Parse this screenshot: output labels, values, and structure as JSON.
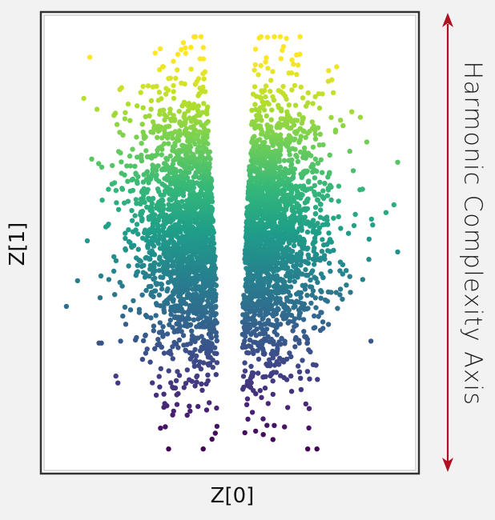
{
  "chart_data": {
    "type": "scatter",
    "title": "",
    "xlabel": "Z[0]",
    "ylabel": "Z[1]",
    "grid": false,
    "legend": "none",
    "colormap": "viridis",
    "color_encodes": "Z[1]",
    "xlim": [
      -2.6,
      2.6
    ],
    "ylim": [
      -3.2,
      3.2
    ],
    "point_count": 4000,
    "distribution": "two vertical lobes mirrored about Z[0]=0 with an empty gap between them; point density highest near the center",
    "annotation": "Harmonic Complexity Axis",
    "annotation_arrow": "double-headed vertical arrow"
  },
  "colors": {
    "background": "#f2f2f2",
    "plot_background": "#ffffff",
    "frame": "#333333",
    "inner_frame": "#bbbbbb",
    "arrow": "#b01020",
    "colormap_stops": [
      "#440154",
      "#482878",
      "#3e4a89",
      "#31688e",
      "#26828e",
      "#1f9e89",
      "#35b779",
      "#6ece58",
      "#b5de2b",
      "#fde725"
    ]
  }
}
